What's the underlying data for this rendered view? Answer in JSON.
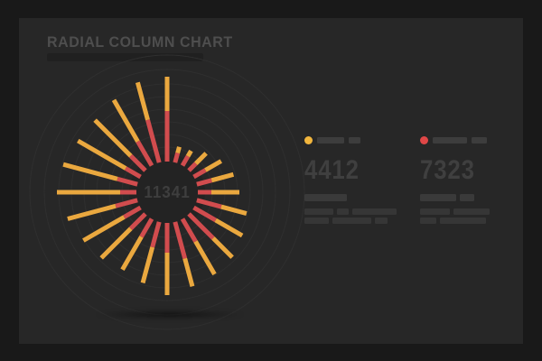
{
  "page": {
    "title": "RADIAL COLUMN CHART"
  },
  "colors": {
    "background_outer": "#191919",
    "panel": "#272727",
    "title_text": "#4e4e4e",
    "grid_circle": "#2f2f2f",
    "center_fill": "#232323",
    "spoke_inner_red": "#d14c4e",
    "spoke_outer_yellow": "#eaa83f",
    "legend_dot_yellow": "#f2b63d",
    "legend_dot_red": "#e04747",
    "placeholder_bar": "#3a3a3a",
    "big_number_text": "#3f3f3f"
  },
  "chart_data": {
    "type": "bar",
    "subtype": "radial-column",
    "title": "RADIAL COLUMN CHART",
    "center_value": "11341",
    "legend": [
      {
        "series": "outer-yellow",
        "value": "4412",
        "color": "#f2b63d"
      },
      {
        "series": "inner-red",
        "value": "7323",
        "color": "#e04747"
      }
    ],
    "legend_position": "right",
    "grid": "on",
    "grid_radii": [
      50,
      64,
      78,
      92,
      106,
      120,
      136,
      152
    ],
    "inner_radius": 34,
    "spoke_width": 5,
    "spokes": [
      {
        "angle": 0,
        "red_end": 90,
        "outer_end": 128
      },
      {
        "angle": 15,
        "red_end": 45,
        "outer_end": 52
      },
      {
        "angle": 30,
        "red_end": 46,
        "outer_end": 53
      },
      {
        "angle": 45,
        "red_end": 45,
        "outer_end": 61
      },
      {
        "angle": 60,
        "red_end": 49,
        "outer_end": 69
      },
      {
        "angle": 75,
        "red_end": 51,
        "outer_end": 76
      },
      {
        "angle": 90,
        "red_end": 49,
        "outer_end": 80
      },
      {
        "angle": 105,
        "red_end": 62,
        "outer_end": 91
      },
      {
        "angle": 120,
        "red_end": 62,
        "outer_end": 96
      },
      {
        "angle": 135,
        "red_end": 72,
        "outer_end": 102
      },
      {
        "angle": 150,
        "red_end": 63,
        "outer_end": 105
      },
      {
        "angle": 165,
        "red_end": 76,
        "outer_end": 108
      },
      {
        "angle": 180,
        "red_end": 67,
        "outer_end": 114
      },
      {
        "angle": 195,
        "red_end": 63,
        "outer_end": 104
      },
      {
        "angle": 210,
        "red_end": 57,
        "outer_end": 99
      },
      {
        "angle": 225,
        "red_end": 57,
        "outer_end": 103
      },
      {
        "angle": 240,
        "red_end": 55,
        "outer_end": 107
      },
      {
        "angle": 255,
        "red_end": 59,
        "outer_end": 114
      },
      {
        "angle": 270,
        "red_end": 52,
        "outer_end": 122
      },
      {
        "angle": 285,
        "red_end": 57,
        "outer_end": 119
      },
      {
        "angle": 300,
        "red_end": 53,
        "outer_end": 114
      },
      {
        "angle": 315,
        "red_end": 57,
        "outer_end": 113
      },
      {
        "angle": 330,
        "red_end": 65,
        "outer_end": 118
      },
      {
        "angle": 345,
        "red_end": 83,
        "outer_end": 126
      }
    ]
  },
  "center_label": "11341",
  "stats": [
    {
      "value": "4412",
      "dot_color": "#f2b63d",
      "legend_bars": [
        30,
        13
      ],
      "line_rows": [
        [
          47
        ],
        [
          32,
          13,
          49
        ],
        [
          27,
          43,
          14
        ]
      ]
    },
    {
      "value": "7323",
      "dot_color": "#e04747",
      "legend_bars": [
        38,
        17
      ],
      "line_rows": [
        [
          40,
          16
        ],
        [
          33,
          40
        ],
        [
          18,
          51
        ]
      ]
    }
  ]
}
